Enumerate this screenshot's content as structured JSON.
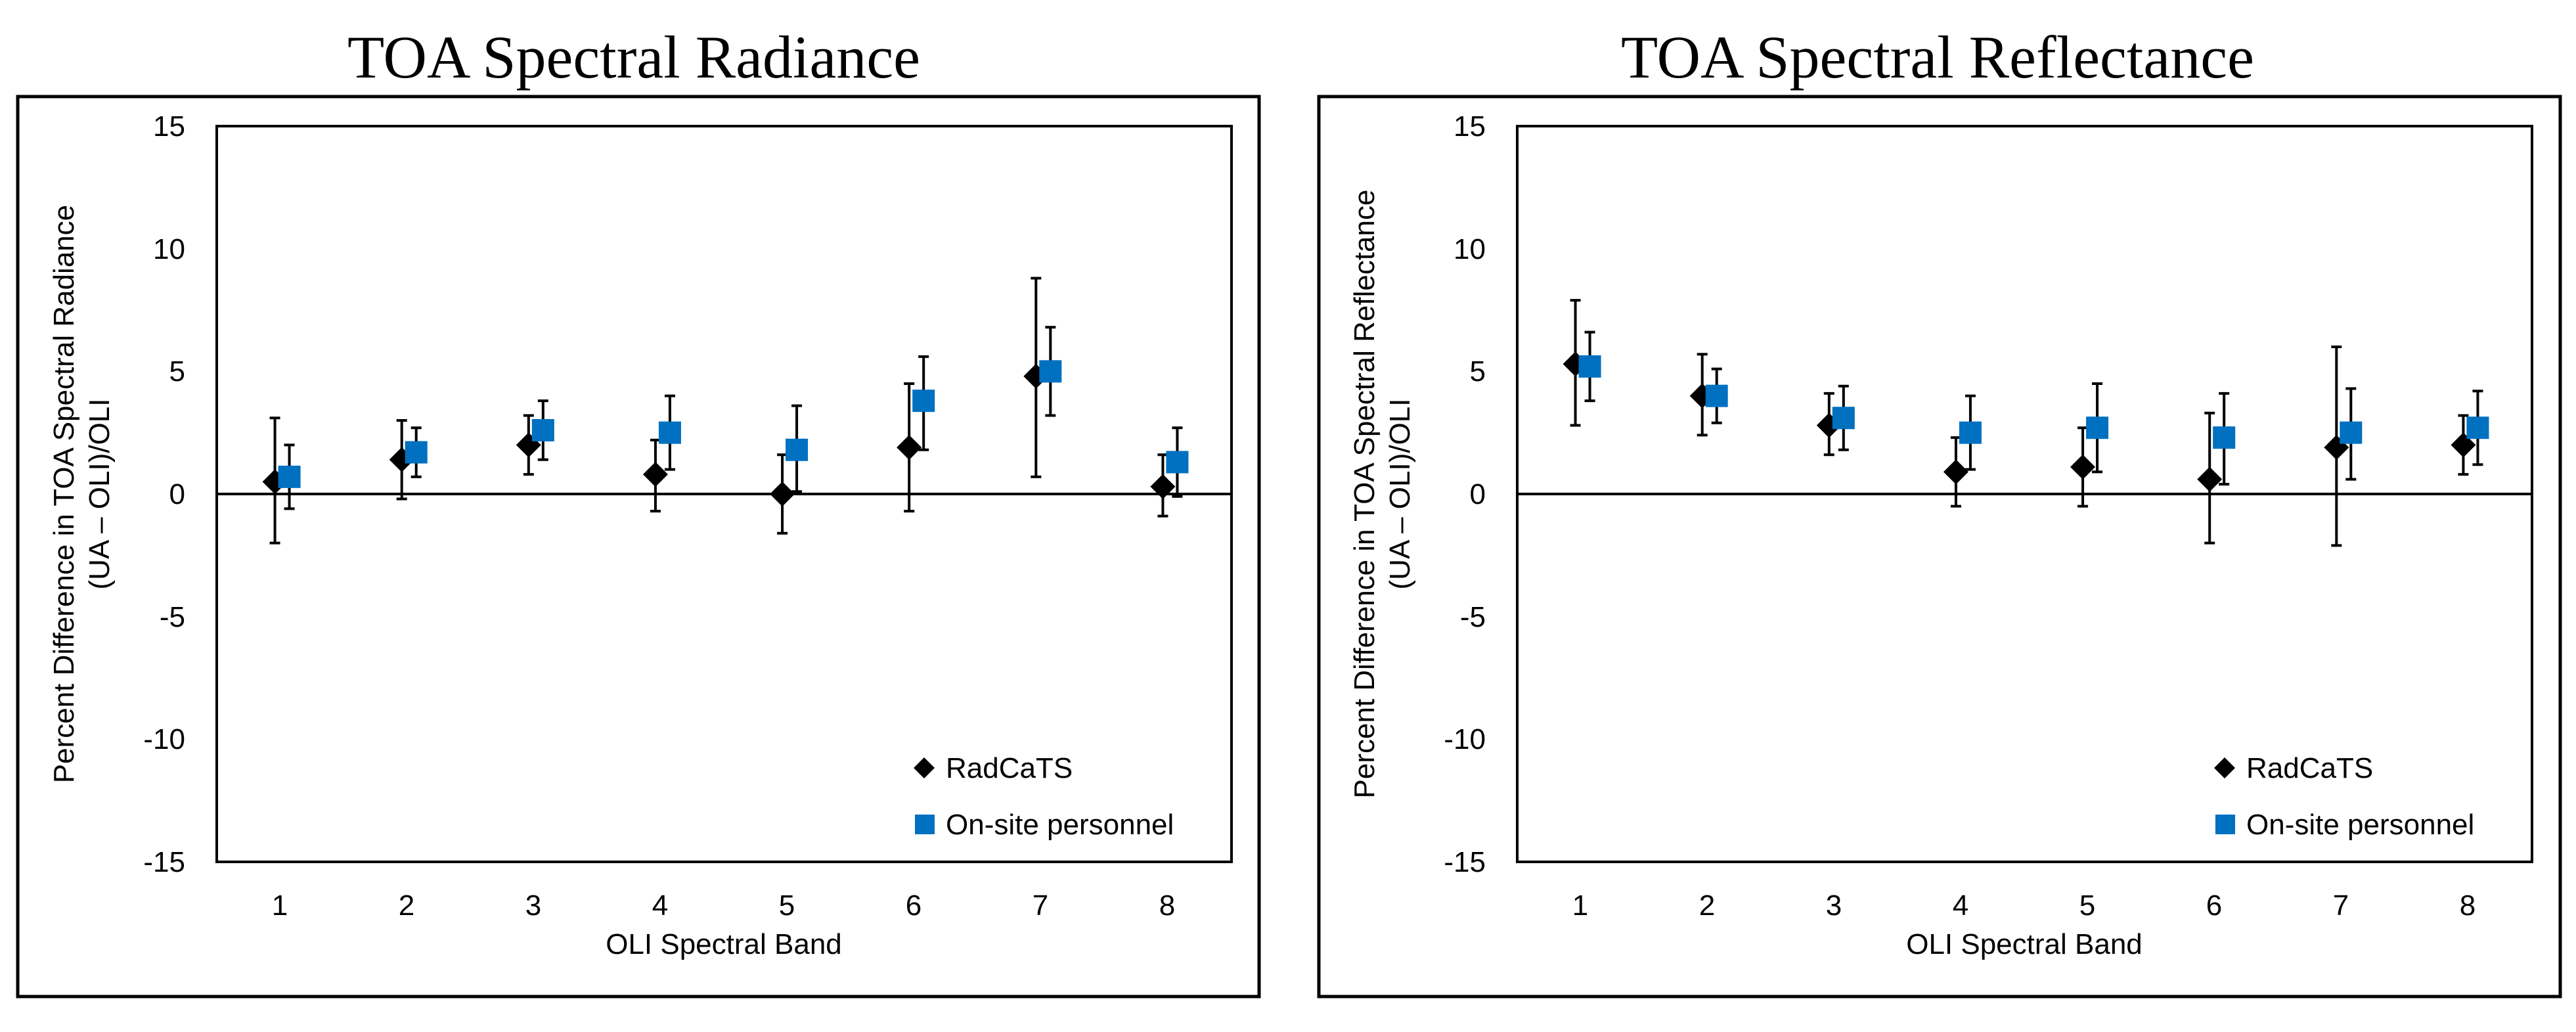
{
  "chart_data": [
    {
      "type": "scatter",
      "title": "TOA Spectral Radiance",
      "xlabel": "OLI Spectral Band",
      "ylabel_line1": "Percent Difference in TOA Spectral Radiance",
      "ylabel_line2": "(UA – OLI)/OLI",
      "categories": [
        "1",
        "2",
        "3",
        "4",
        "5",
        "6",
        "7",
        "8"
      ],
      "ylim": [
        -15,
        15
      ],
      "yticks": [
        "15",
        "10",
        "5",
        "0",
        "-5",
        "-10",
        "-15"
      ],
      "series": [
        {
          "name": "RadCaTS",
          "marker": "diamond",
          "color": "#000000",
          "values": [
            0.5,
            1.4,
            2.0,
            0.8,
            0.0,
            1.9,
            4.8,
            0.3
          ],
          "err_low": [
            -2.0,
            -0.2,
            0.8,
            -0.7,
            -1.6,
            -0.7,
            0.7,
            -0.9
          ],
          "err_high": [
            3.1,
            3.0,
            3.2,
            2.2,
            1.6,
            4.5,
            8.8,
            1.6
          ]
        },
        {
          "name": "On-site personnel",
          "marker": "square",
          "color": "#0070C0",
          "values": [
            0.7,
            1.7,
            2.6,
            2.5,
            1.8,
            3.8,
            5.0,
            1.3
          ],
          "err_low": [
            -0.6,
            0.7,
            1.4,
            1.0,
            0.1,
            1.8,
            3.2,
            -0.1
          ],
          "err_high": [
            2.0,
            2.7,
            3.8,
            4.0,
            3.6,
            5.6,
            6.8,
            2.7
          ]
        }
      ]
    },
    {
      "type": "scatter",
      "title": "TOA Spectral Reflectance",
      "xlabel": "OLI Spectral Band",
      "ylabel_line1": "Percent Difference in TOA Spectral Reflectance",
      "ylabel_line2": "(UA – OLI)/OLI",
      "categories": [
        "1",
        "2",
        "3",
        "4",
        "5",
        "6",
        "7",
        "8"
      ],
      "ylim": [
        -15,
        15
      ],
      "yticks": [
        "15",
        "10",
        "5",
        "0",
        "-5",
        "-10",
        "-15"
      ],
      "series": [
        {
          "name": "RadCaTS",
          "marker": "diamond",
          "color": "#000000",
          "values": [
            5.3,
            4.0,
            2.8,
            0.9,
            1.1,
            0.6,
            1.9,
            2.0
          ],
          "err_low": [
            2.8,
            2.4,
            1.6,
            -0.5,
            -0.5,
            -2.0,
            -2.1,
            0.8
          ],
          "err_high": [
            7.9,
            5.7,
            4.1,
            2.3,
            2.7,
            3.3,
            6.0,
            3.2
          ]
        },
        {
          "name": "On-site personnel",
          "marker": "square",
          "color": "#0070C0",
          "values": [
            5.2,
            4.0,
            3.1,
            2.5,
            2.7,
            2.3,
            2.5,
            2.7
          ],
          "err_low": [
            3.8,
            2.9,
            1.8,
            1.0,
            0.9,
            0.4,
            0.6,
            1.2
          ],
          "err_high": [
            6.6,
            5.1,
            4.4,
            4.0,
            4.5,
            4.1,
            4.3,
            4.2
          ]
        }
      ]
    }
  ]
}
